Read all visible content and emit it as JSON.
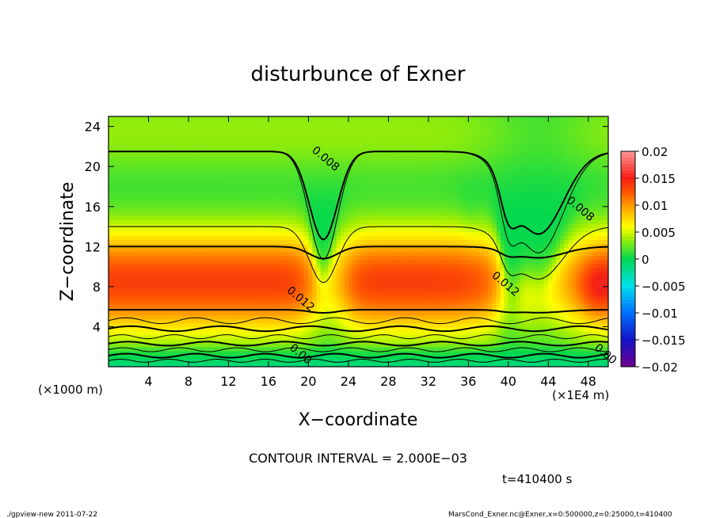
{
  "chart_data": {
    "type": "heatmap",
    "title": "disturbunce of Exner",
    "xlabel": "X−coordinate",
    "ylabel": "Z−coordinate",
    "x_unit_label": "(×1000 m)",
    "x_scale_label": "(×1E4 m)",
    "x_ticks": [
      "4",
      "8",
      "12",
      "16",
      "20",
      "24",
      "28",
      "32",
      "36",
      "40",
      "44",
      "48"
    ],
    "y_ticks": [
      "4",
      "8",
      "12",
      "16",
      "20",
      "24"
    ],
    "xlim": [
      0,
      50
    ],
    "ylim": [
      0,
      25
    ],
    "colorbar_ticks": [
      "0.02",
      "0.015",
      "0.01",
      "0.005",
      "0",
      "−0.005",
      "−0.01",
      "−0.015",
      "−0.02"
    ],
    "colorbar_range": [
      -0.02,
      0.02
    ],
    "contour_labels": [
      {
        "text": "0.008",
        "x": 21.5,
        "y": 20.5
      },
      {
        "text": "0.008",
        "x": 47,
        "y": 15.5
      },
      {
        "text": "0.012",
        "x": 19,
        "y": 6.5
      },
      {
        "text": "0.012",
        "x": 39.5,
        "y": 8
      },
      {
        "text": "0.00",
        "x": 19,
        "y": 1
      },
      {
        "text": "0.00",
        "x": 49.5,
        "y": 1
      }
    ],
    "contour_interval_text": "CONTOUR INTERVAL = 2.000E−03",
    "time_text": "t=410400 s"
  },
  "footer": {
    "left": "./gpview-new   2011-07-22",
    "right": "MarsCond_Exner.nc@Exner,x=0:500000,z=0:25000,t=410400"
  }
}
